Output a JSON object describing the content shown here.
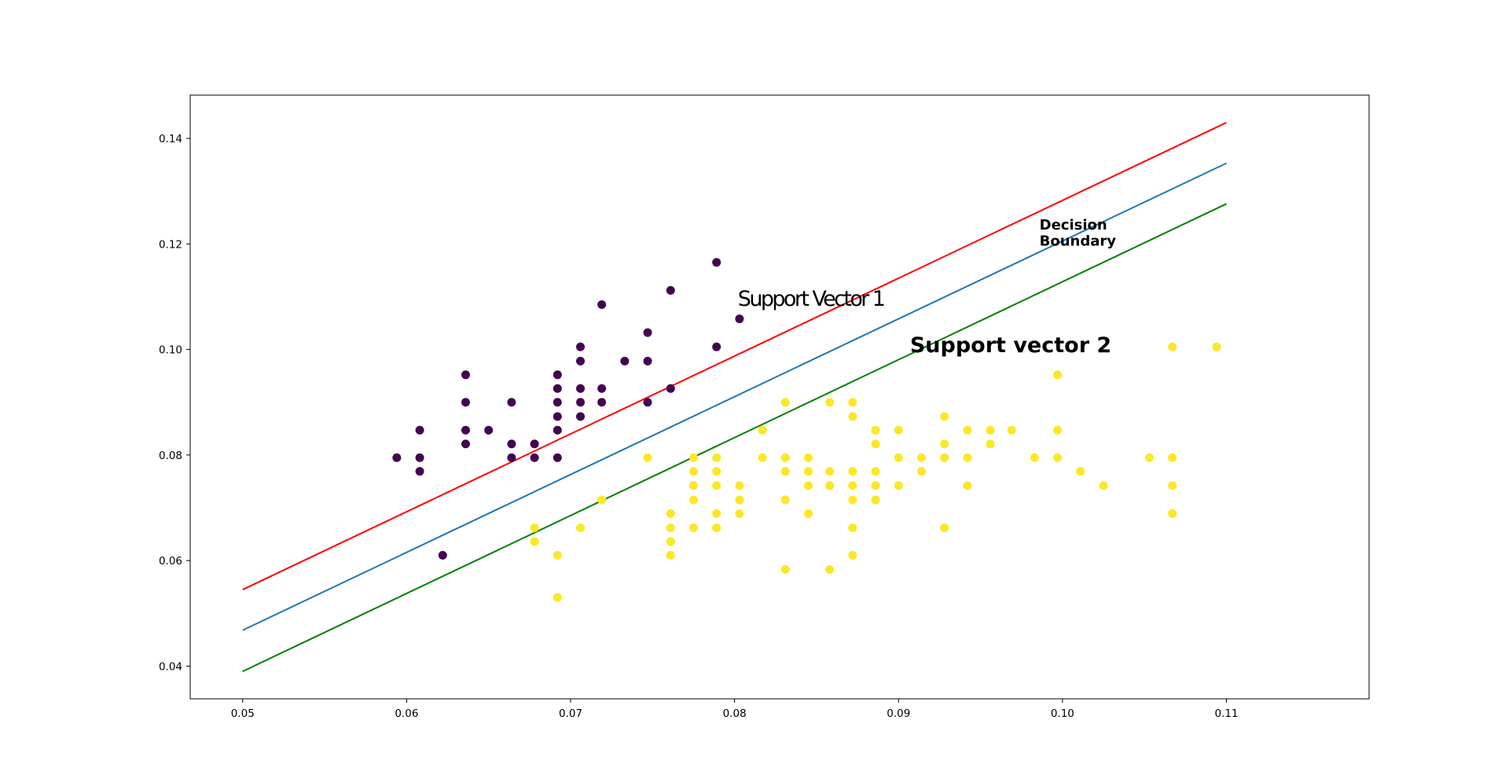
{
  "chart_data": {
    "type": "scatter",
    "title": "",
    "xlabel": "",
    "ylabel": "",
    "xlim": [
      0.0468,
      0.1187
    ],
    "ylim": [
      0.0338,
      0.1482
    ],
    "grid": false,
    "legend": "none",
    "x_ticks": [
      0.05,
      0.06,
      0.07,
      0.08,
      0.09,
      0.1,
      0.11
    ],
    "x_tick_labels": [
      "0.05",
      "0.06",
      "0.07",
      "0.08",
      "0.09",
      "0.10",
      "0.11"
    ],
    "y_ticks": [
      0.04,
      0.06,
      0.08,
      0.1,
      0.12,
      0.14
    ],
    "y_tick_labels": [
      "0.04",
      "0.06",
      "0.08",
      "0.10",
      "0.12",
      "0.14"
    ],
    "lines": [
      {
        "color": "#ff0000",
        "x": [
          0.05,
          0.11
        ],
        "y": [
          0.0545,
          0.143
        ]
      },
      {
        "color": "#1f77b4",
        "x": [
          0.05,
          0.11
        ],
        "y": [
          0.0468,
          0.1353
        ]
      },
      {
        "color": "#008000",
        "x": [
          0.05,
          0.11
        ],
        "y": [
          0.039,
          0.1276
        ]
      }
    ],
    "series": [
      {
        "color": "#440154",
        "points": [
          [
            0.0594,
            0.0795
          ],
          [
            0.0608,
            0.0847
          ],
          [
            0.0608,
            0.0795
          ],
          [
            0.0608,
            0.0769
          ],
          [
            0.0622,
            0.061
          ],
          [
            0.0636,
            0.0952
          ],
          [
            0.0636,
            0.09
          ],
          [
            0.0636,
            0.0847
          ],
          [
            0.0636,
            0.0821
          ],
          [
            0.065,
            0.0847
          ],
          [
            0.0664,
            0.09
          ],
          [
            0.0664,
            0.0821
          ],
          [
            0.0664,
            0.0795
          ],
          [
            0.0678,
            0.0821
          ],
          [
            0.0678,
            0.0795
          ],
          [
            0.0692,
            0.0952
          ],
          [
            0.0692,
            0.0926
          ],
          [
            0.0692,
            0.09
          ],
          [
            0.0692,
            0.0873
          ],
          [
            0.0692,
            0.0847
          ],
          [
            0.0692,
            0.0795
          ],
          [
            0.0706,
            0.1005
          ],
          [
            0.0706,
            0.0978
          ],
          [
            0.0706,
            0.0926
          ],
          [
            0.0706,
            0.09
          ],
          [
            0.0706,
            0.0873
          ],
          [
            0.0719,
            0.1085
          ],
          [
            0.0719,
            0.0926
          ],
          [
            0.0719,
            0.09
          ],
          [
            0.0733,
            0.0978
          ],
          [
            0.0747,
            0.1032
          ],
          [
            0.0747,
            0.0978
          ],
          [
            0.0747,
            0.09
          ],
          [
            0.0761,
            0.1112
          ],
          [
            0.0761,
            0.0926
          ],
          [
            0.0789,
            0.1165
          ],
          [
            0.0789,
            0.1005
          ],
          [
            0.0803,
            0.1058
          ]
        ]
      },
      {
        "color": "#fde725",
        "points": [
          [
            0.0678,
            0.0662
          ],
          [
            0.0678,
            0.0636
          ],
          [
            0.0692,
            0.061
          ],
          [
            0.0692,
            0.053
          ],
          [
            0.0706,
            0.0662
          ],
          [
            0.0719,
            0.0715
          ],
          [
            0.0747,
            0.0795
          ],
          [
            0.0761,
            0.0689
          ],
          [
            0.0761,
            0.0662
          ],
          [
            0.0761,
            0.0636
          ],
          [
            0.0761,
            0.061
          ],
          [
            0.0775,
            0.0795
          ],
          [
            0.0775,
            0.0769
          ],
          [
            0.0775,
            0.0742
          ],
          [
            0.0775,
            0.0715
          ],
          [
            0.0775,
            0.0662
          ],
          [
            0.0789,
            0.0795
          ],
          [
            0.0789,
            0.0769
          ],
          [
            0.0789,
            0.0742
          ],
          [
            0.0789,
            0.0689
          ],
          [
            0.0789,
            0.0662
          ],
          [
            0.0803,
            0.0742
          ],
          [
            0.0803,
            0.0715
          ],
          [
            0.0803,
            0.0689
          ],
          [
            0.0817,
            0.0847
          ],
          [
            0.0817,
            0.0795
          ],
          [
            0.0831,
            0.09
          ],
          [
            0.0831,
            0.0795
          ],
          [
            0.0831,
            0.0769
          ],
          [
            0.0831,
            0.0715
          ],
          [
            0.0831,
            0.0583
          ],
          [
            0.0845,
            0.0795
          ],
          [
            0.0845,
            0.0769
          ],
          [
            0.0845,
            0.0742
          ],
          [
            0.0845,
            0.0689
          ],
          [
            0.0858,
            0.09
          ],
          [
            0.0858,
            0.0769
          ],
          [
            0.0858,
            0.0742
          ],
          [
            0.0858,
            0.0583
          ],
          [
            0.0872,
            0.09
          ],
          [
            0.0872,
            0.0873
          ],
          [
            0.0872,
            0.0769
          ],
          [
            0.0872,
            0.0742
          ],
          [
            0.0872,
            0.0715
          ],
          [
            0.0872,
            0.0662
          ],
          [
            0.0872,
            0.061
          ],
          [
            0.0886,
            0.0847
          ],
          [
            0.0886,
            0.0821
          ],
          [
            0.0886,
            0.0769
          ],
          [
            0.0886,
            0.0742
          ],
          [
            0.0886,
            0.0715
          ],
          [
            0.09,
            0.0847
          ],
          [
            0.09,
            0.0795
          ],
          [
            0.09,
            0.0742
          ],
          [
            0.0914,
            0.0795
          ],
          [
            0.0914,
            0.0769
          ],
          [
            0.0928,
            0.0873
          ],
          [
            0.0928,
            0.0821
          ],
          [
            0.0928,
            0.0795
          ],
          [
            0.0928,
            0.0662
          ],
          [
            0.0942,
            0.0847
          ],
          [
            0.0942,
            0.0795
          ],
          [
            0.0942,
            0.0742
          ],
          [
            0.0956,
            0.0847
          ],
          [
            0.0956,
            0.0821
          ],
          [
            0.0969,
            0.0847
          ],
          [
            0.0983,
            0.0795
          ],
          [
            0.0997,
            0.0952
          ],
          [
            0.0997,
            0.0847
          ],
          [
            0.0997,
            0.0795
          ],
          [
            0.1011,
            0.0769
          ],
          [
            0.1025,
            0.0742
          ],
          [
            0.1053,
            0.0795
          ],
          [
            0.1067,
            0.1005
          ],
          [
            0.1067,
            0.0795
          ],
          [
            0.1067,
            0.0742
          ],
          [
            0.1067,
            0.0689
          ],
          [
            0.1094,
            0.1005
          ]
        ]
      }
    ],
    "annotations": [
      {
        "text": "Support Vector 1",
        "x": 0.0802,
        "y": 0.1083,
        "style": "condensed"
      },
      {
        "text": "Support vector 2",
        "x": 0.0907,
        "y": 0.0995,
        "style": "large"
      },
      {
        "text": "Decision",
        "x": 0.0986,
        "y": 0.1227,
        "style": "small"
      },
      {
        "text": "Boundary",
        "x": 0.0986,
        "y": 0.1197,
        "style": "small"
      }
    ]
  }
}
